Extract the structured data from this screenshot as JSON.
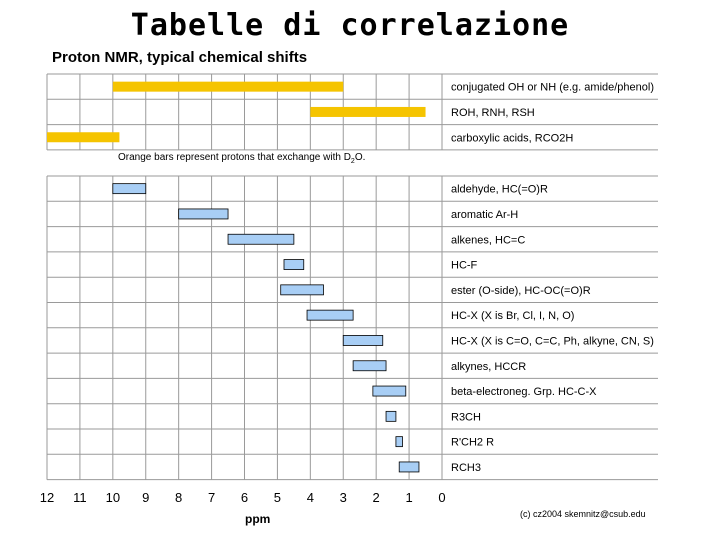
{
  "slide": {
    "title": "Tabelle di correlazione"
  },
  "chart_data": {
    "type": "bar",
    "orientation": "horizontal-range",
    "title": "Proton NMR, typical chemical shifts",
    "xlabel": "ppm",
    "xlim": [
      12,
      0
    ],
    "xticks": [
      12,
      11,
      10,
      9,
      8,
      7,
      6,
      5,
      4,
      3,
      2,
      1,
      0
    ],
    "grid": true,
    "note_prefix": "Orange bars represent protons that exchange with D",
    "note_sub": "2",
    "note_suffix": "O.",
    "credit": "(c) cz2004  skemnitz@csub.edu",
    "colors": {
      "exchange": "#f5c400",
      "normal": "#a8cef5",
      "outline": "#000000",
      "grid": "#9a9a9a"
    },
    "groups": [
      {
        "name": "exchange",
        "rows": [
          {
            "label": "conjugated OH or NH (e.g. amide/phenol)",
            "range": [
              10.0,
              3.0
            ]
          },
          {
            "label": "ROH, RNH, RSH",
            "range": [
              4.0,
              0.5
            ]
          },
          {
            "label": "carboxylic acids, RCO2H",
            "range": [
              12.0,
              9.8
            ]
          }
        ]
      },
      {
        "name": "normal",
        "rows": [
          {
            "label": "aldehyde, HC(=O)R",
            "range": [
              10.0,
              9.0
            ]
          },
          {
            "label": "aromatic  Ar-H",
            "range": [
              8.0,
              6.5
            ]
          },
          {
            "label": "alkenes, HC=C",
            "range": [
              6.5,
              4.5
            ]
          },
          {
            "label": "HC-F",
            "range": [
              4.8,
              4.2
            ]
          },
          {
            "label": "ester (O-side), HC-OC(=O)R",
            "range": [
              4.9,
              3.6
            ]
          },
          {
            "label": "HC-X (X is Br, Cl, I, N, O)",
            "range": [
              4.1,
              2.7
            ]
          },
          {
            "label": "HC-X (X is C=O, C=C, Ph, alkyne, CN, S)",
            "range": [
              3.0,
              1.8
            ]
          },
          {
            "label": "alkynes, HCCR",
            "range": [
              2.7,
              1.7
            ]
          },
          {
            "label": "beta-electroneg. Grp. HC-C-X",
            "range": [
              2.1,
              1.1
            ]
          },
          {
            "label": "R3CH",
            "range": [
              1.7,
              1.4
            ]
          },
          {
            "label": "R'CH2 R",
            "range": [
              1.4,
              1.2
            ]
          },
          {
            "label": "RCH3",
            "range": [
              1.3,
              0.7
            ]
          }
        ]
      }
    ]
  }
}
